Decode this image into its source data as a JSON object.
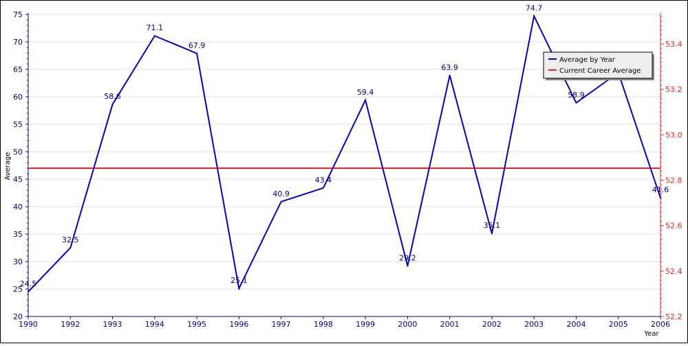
{
  "chart_data": {
    "type": "line",
    "title": "",
    "xlabel": "Year",
    "ylabel": "Average",
    "x": [
      "1990",
      "1992",
      "1993",
      "1994",
      "1995",
      "1996",
      "1997",
      "1998",
      "1999",
      "2000",
      "2001",
      "2002",
      "2003",
      "2004",
      "2005",
      "2006"
    ],
    "series": [
      {
        "name": "Average by Year",
        "color": "#0000cc",
        "values": [
          24.5,
          32.5,
          58.6,
          71.1,
          67.9,
          25.1,
          40.9,
          43.4,
          59.4,
          29.2,
          63.9,
          35.1,
          74.7,
          58.9,
          64.4,
          41.6
        ],
        "labels": [
          "24.5",
          "32.5",
          "58.6",
          "71.1",
          "67.9",
          "25.1",
          "40.9",
          "43.4",
          "59.4",
          "29.2",
          "63.9",
          "35.1",
          "74.7",
          "58.9",
          "",
          "41.6"
        ]
      },
      {
        "name": "Current Career Average",
        "color": "#ee2222",
        "value": 47.0,
        "axis": "left"
      }
    ],
    "ylim": [
      20,
      75
    ],
    "yticks": [
      20,
      25,
      30,
      35,
      40,
      45,
      50,
      55,
      60,
      65,
      70,
      75
    ],
    "y2lim": [
      52.2,
      53.53
    ],
    "y2ticks": [
      "52.2",
      "52.4",
      "52.6",
      "52.8",
      "53.0",
      "53.2",
      "53.4"
    ],
    "y2_color": "#ee2222",
    "axis_color": "#000088",
    "grid": true,
    "legend_position": "top-right"
  }
}
